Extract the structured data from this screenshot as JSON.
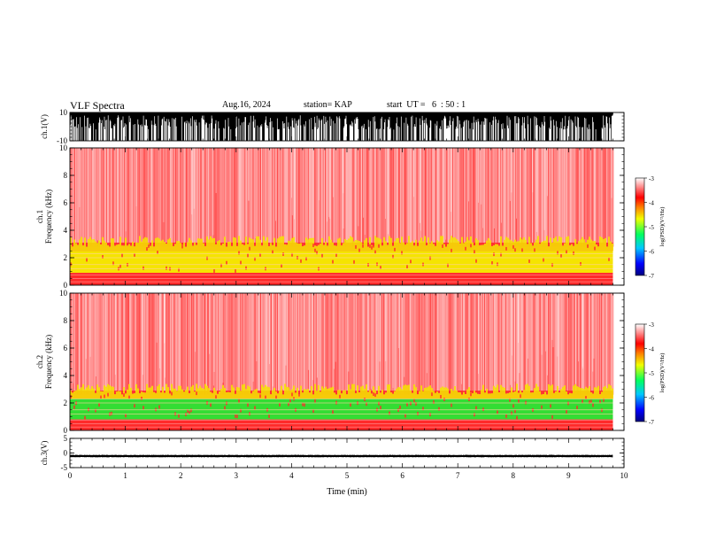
{
  "header": {
    "title": "VLF Spectra",
    "date": "Aug.16, 2024",
    "station": "station= KAP",
    "start": "start  UT =   6  : 50 : 1"
  },
  "chart_data": [
    {
      "type": "line",
      "panel": "ch1-waveform",
      "ylabel": "ch.1(V)",
      "ylim": [
        -10,
        10
      ],
      "yticks": [
        "10",
        "-10"
      ],
      "xlim": [
        0,
        10
      ],
      "data_extent_min": [
        0,
        9.8
      ],
      "description_level": "dense waveform, mostly near +10 with frequent negative excursions"
    },
    {
      "type": "heatmap",
      "panel": "ch1-spectrogram",
      "ylabel": "ch.1\nFrequency  (kHz)",
      "ylim": [
        0,
        10
      ],
      "yticks": [
        "0",
        "2",
        "4",
        "6",
        "8",
        "10"
      ],
      "xlim": [
        0,
        10
      ],
      "data_extent_min": [
        0,
        9.8
      ],
      "bands_khz": [
        {
          "from": 0,
          "to": 0.9,
          "level": "red (~-4)"
        },
        {
          "from": 0.9,
          "to": 2.8,
          "level": "yellow/orange (~-4.5)"
        },
        {
          "from": 2.8,
          "to": 10,
          "level": "speckled red/white (~-3 to -4)"
        }
      ],
      "colorbar": {
        "label": "log(PSD)(V²/Hz)",
        "range": [
          -7,
          -3
        ],
        "ticks": [
          "-3",
          "-4",
          "-5",
          "-6",
          "-7"
        ]
      }
    },
    {
      "type": "heatmap",
      "panel": "ch2-spectrogram",
      "ylabel": "ch.2\nFrequency  (kHz)",
      "ylim": [
        0,
        10
      ],
      "yticks": [
        "0",
        "2",
        "4",
        "6",
        "8",
        "10"
      ],
      "xlim": [
        0,
        10
      ],
      "data_extent_min": [
        0,
        9.8
      ],
      "bands_khz": [
        {
          "from": 0,
          "to": 0.8,
          "level": "red (~-4)"
        },
        {
          "from": 0.8,
          "to": 2.6,
          "level": "green/yellow (~-5)"
        },
        {
          "from": 2.6,
          "to": 10,
          "level": "speckled red/white (~-3 to -4)"
        }
      ],
      "colorbar": {
        "label": "log(PSD)(V²/Hz)",
        "range": [
          -7,
          -3
        ],
        "ticks": [
          "-3",
          "-4",
          "-5",
          "-6",
          "-7"
        ]
      }
    },
    {
      "type": "line",
      "panel": "ch3-waveform",
      "ylabel": "ch.3(V)",
      "ylim": [
        -5,
        5
      ],
      "yticks": [
        "5",
        "0",
        "-5"
      ],
      "xlim": [
        0,
        10
      ],
      "data_extent_min": [
        0,
        9.8
      ],
      "description_level": "narrow band around -1 V"
    }
  ],
  "xaxis": {
    "label": "Time  (min)",
    "ticks": [
      "0",
      "1",
      "2",
      "3",
      "4",
      "5",
      "6",
      "7",
      "8",
      "9",
      "10"
    ]
  },
  "colors": {
    "waveform": "#000000",
    "red": "#ff2a2a",
    "yellow": "#f5e400",
    "green": "#33dd33"
  }
}
